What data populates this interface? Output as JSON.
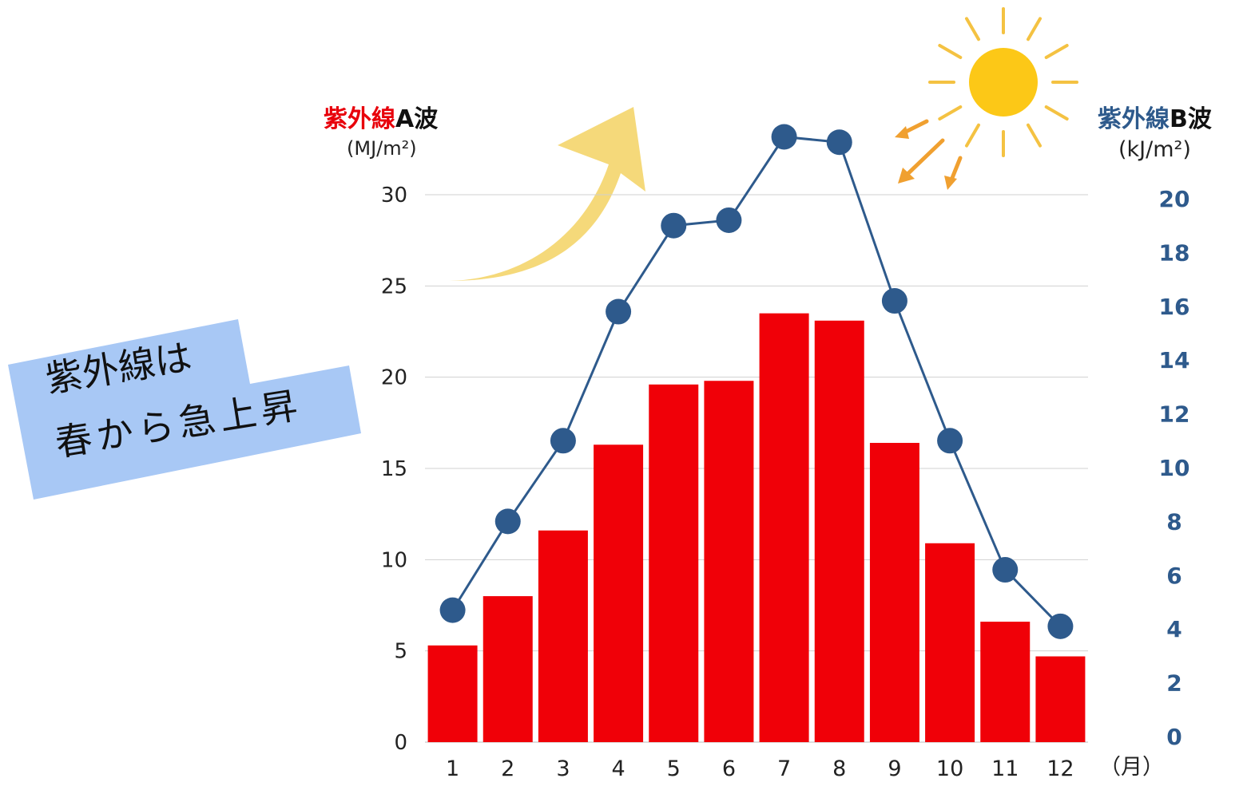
{
  "chart_data": {
    "type": "bar+line",
    "categories": [
      "1",
      "2",
      "3",
      "4",
      "5",
      "6",
      "7",
      "8",
      "9",
      "10",
      "11",
      "12"
    ],
    "x_unit": "（月）",
    "series": [
      {
        "name": "紫外線A波",
        "type": "bar",
        "axis": "left",
        "unit": "(MJ/m²)",
        "color": "#f00008",
        "values": [
          5.3,
          8.0,
          11.6,
          16.3,
          19.6,
          19.8,
          23.5,
          23.1,
          16.4,
          10.9,
          6.6,
          4.7
        ]
      },
      {
        "name": "紫外線B波",
        "type": "line",
        "axis": "right",
        "unit": "(kJ/m²)",
        "color": "#2e5a8c",
        "values": [
          4.7,
          8.0,
          11.0,
          15.8,
          19.0,
          19.2,
          22.3,
          22.1,
          16.2,
          11.0,
          6.2,
          4.1
        ]
      }
    ],
    "y_left": {
      "ticks": [
        0,
        5,
        10,
        15,
        20,
        25,
        30
      ],
      "range": [
        0,
        30
      ]
    },
    "y_right": {
      "ticks": [
        0,
        2,
        4,
        6,
        8,
        10,
        12,
        14,
        16,
        18,
        20
      ]
    },
    "grid": true
  },
  "labels": {
    "title_a_main": "紫外線",
    "title_a_suffix": "A波",
    "unit_a": "(MJ/m²)",
    "title_b_main": "紫外線",
    "title_b_suffix": "B波",
    "unit_b": "(kJ/m²)",
    "month_unit": "（月）"
  },
  "note": {
    "line1": "紫外線は",
    "line2": "春から急上昇",
    "color": "#a8c8f5"
  },
  "decor": {
    "sun_color": "#fcc817",
    "ray_color": "#f4c242",
    "arrow_color": "#f5d97a",
    "small_arrow_color": "#f0a030"
  }
}
